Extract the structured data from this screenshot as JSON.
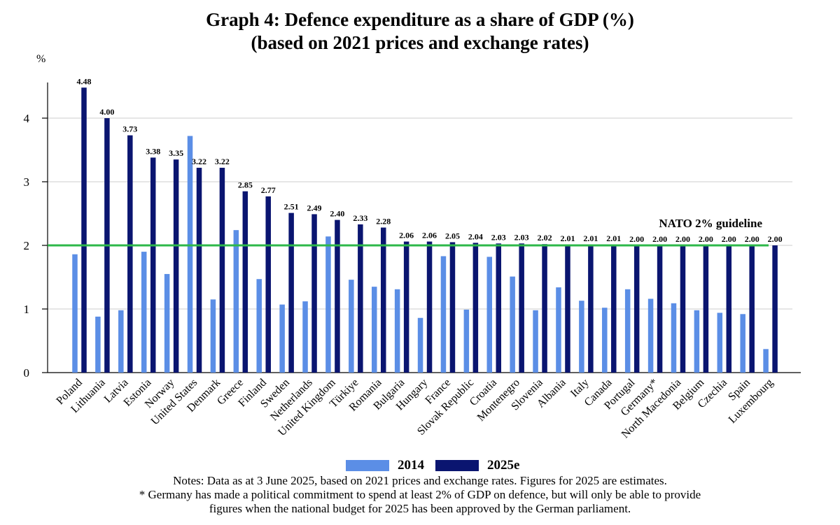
{
  "title": {
    "line1": "Graph 4: Defence expenditure as a share of GDP (%)",
    "line2": "(based on 2021 prices and exchange rates)"
  },
  "y_unit": "%",
  "colors": {
    "s2014": "#5b8ee6",
    "s2025": "#0a1570",
    "guideline": "#2db84a",
    "grid": "#cccccc"
  },
  "chart_data": {
    "type": "bar",
    "categories": [
      "Poland",
      "Lithuania",
      "Latvia",
      "Estonia",
      "Norway",
      "United States",
      "Denmark",
      "Greece",
      "Finland",
      "Sweden",
      "Netherlands",
      "United Kingdom",
      "Türkiye",
      "Romania",
      "Bulgaria",
      "Hungary",
      "France",
      "Slovak Republic",
      "Croatia",
      "Montenegro",
      "Slovenia",
      "Albania",
      "Italy",
      "Canada",
      "Portugal",
      "Germany*",
      "North Macedonia",
      "Belgium",
      "Czechia",
      "Spain",
      "Luxembourg"
    ],
    "series": [
      {
        "name": "2014",
        "values": [
          1.86,
          0.88,
          0.98,
          1.9,
          1.55,
          3.72,
          1.15,
          2.24,
          1.47,
          1.07,
          1.12,
          2.14,
          1.46,
          1.35,
          1.31,
          0.86,
          1.83,
          0.99,
          1.82,
          1.51,
          0.98,
          1.34,
          1.13,
          1.02,
          1.31,
          1.16,
          1.09,
          0.98,
          0.94,
          0.92,
          0.37
        ]
      },
      {
        "name": "2025e",
        "values": [
          4.48,
          4.0,
          3.73,
          3.38,
          3.35,
          3.22,
          3.22,
          2.85,
          2.77,
          2.51,
          2.49,
          2.4,
          2.33,
          2.28,
          2.06,
          2.06,
          2.05,
          2.04,
          2.03,
          2.03,
          2.02,
          2.01,
          2.01,
          2.01,
          2.0,
          2.0,
          2.0,
          2.0,
          2.0,
          2.0,
          2.0
        ]
      }
    ],
    "data_labels": [
      "4.48",
      "4.00",
      "3.73",
      "3.38",
      "3.35",
      "3.22",
      "3.22",
      "2.85",
      "2.77",
      "2.51",
      "2.49",
      "2.40",
      "2.33",
      "2.28",
      "2.06",
      "2.06",
      "2.05",
      "2.04",
      "2.03",
      "2.03",
      "2.02",
      "2.01",
      "2.01",
      "2.01",
      "2.00",
      "2.00",
      "2.00",
      "2.00",
      "2.00",
      "2.00",
      "2.00"
    ],
    "yticks": [
      0,
      1,
      2,
      3,
      4
    ],
    "ylim": [
      0,
      4.8
    ],
    "grid": true,
    "guideline": {
      "value": 2,
      "label": "NATO 2% guideline"
    },
    "legend_position": "bottom"
  },
  "legend": {
    "item1": "2014",
    "item2": "2025e"
  },
  "notes": {
    "line1": "Notes: Data as at 3 June 2025, based on 2021 prices and exchange rates. Figures for 2025 are estimates.",
    "line2": "* Germany has made a political commitment to spend at least 2% of GDP on defence, but will only be able to provide",
    "line3": "figures when the national budget for 2025 has been approved by the German parliament."
  }
}
